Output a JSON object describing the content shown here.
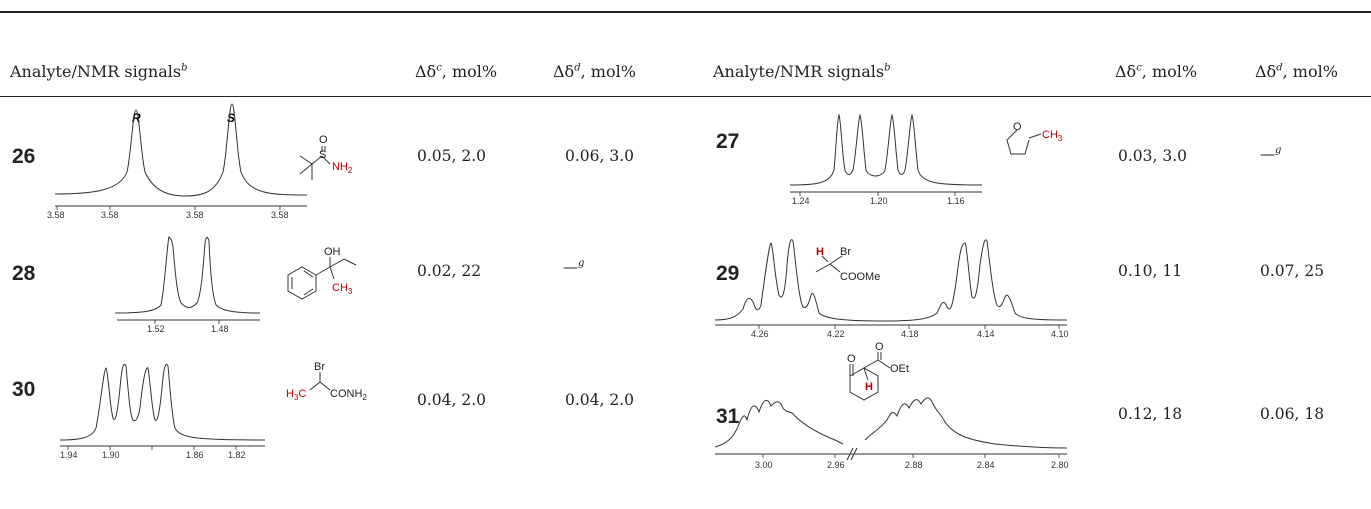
{
  "table": {
    "headers": {
      "left": {
        "analyte": "Analyte/NMR signals",
        "analyte_sup": "b",
        "col_c_main": "Δδ",
        "col_c_sup": "c",
        "col_c_unit": ", mol%",
        "col_d_main": "Δδ",
        "col_d_sup": "d",
        "col_d_unit": ", mol%"
      },
      "right": {
        "analyte": "Analyte/NMR signals",
        "analyte_sup": "b",
        "col_c_main": "Δδ",
        "col_c_sup": "c",
        "col_c_unit": ", mol%",
        "col_d_main": "Δδ",
        "col_d_sup": "d",
        "col_d_unit": ", mol%"
      }
    },
    "rows": [
      {
        "id": "26",
        "ticks": [
          "3.58",
          "3.58",
          "3.58",
          "3.58"
        ],
        "peak_labels": [
          "R",
          "S"
        ],
        "molecule": {
          "o": "O",
          "s": "S",
          "nh": "NH",
          "sub": "2"
        },
        "dc": "0.05, 2.0",
        "dd": "0.06, 3.0"
      },
      {
        "id": "27",
        "ticks": [
          "1.24",
          "1.20",
          "1.16"
        ],
        "molecule": {
          "o": "O",
          "ch": "CH",
          "sub": "3"
        },
        "dc": "0.03, 3.0",
        "dd": "—",
        "dd_sup": "g"
      },
      {
        "id": "28",
        "ticks": [
          "1.52",
          "1.48"
        ],
        "molecule": {
          "oh": "OH",
          "ch": "CH",
          "sub": "3"
        },
        "dc": "0.02, 22",
        "dd": "—",
        "dd_sup": "g"
      },
      {
        "id": "29",
        "ticks": [
          "4.26",
          "4.22",
          "4.18",
          "4.14",
          "4.10"
        ],
        "molecule": {
          "h": "H",
          "br": "Br",
          "coome": "COOMe"
        },
        "dc": "0.10, 11",
        "dd": "0.07, 25"
      },
      {
        "id": "30",
        "ticks": [
          "1.94",
          "1.90",
          "1.86",
          "1.82"
        ],
        "molecule": {
          "br": "Br",
          "h": "H",
          "sub": "3",
          "c": "C",
          "conh": "CONH",
          "sub2": "2"
        },
        "dc": "0.04, 2.0",
        "dd": "0.04, 2.0"
      },
      {
        "id": "31",
        "ticks": [
          "3.00",
          "2.96",
          "2.88",
          "2.84",
          "2.80"
        ],
        "molecule": {
          "o1": "O",
          "o2": "O",
          "oet": "OEt",
          "h": "H"
        },
        "dc": "0.12, 18",
        "dd": "0.06, 18"
      }
    ]
  }
}
